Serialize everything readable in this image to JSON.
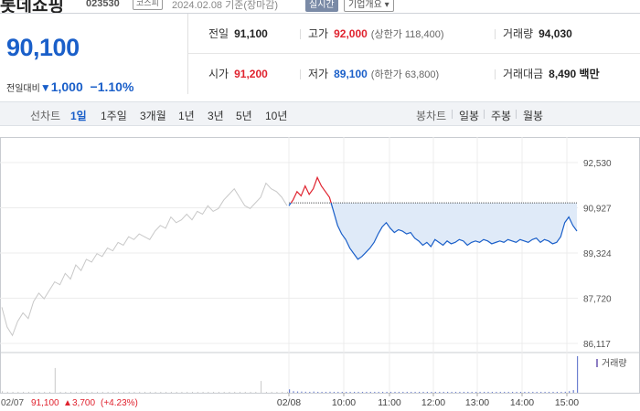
{
  "header": {
    "stock_name": "롯데쇼핑",
    "stock_code": "023530",
    "market_badge": "코스피",
    "date_text": "2024.02.08 기준(장마감)",
    "realtime_label": "실시간",
    "company_info_label": "기업개요 ▾"
  },
  "quote": {
    "price": "90,100",
    "change_label": "전일대비",
    "change_arrow": "▼",
    "change_value": "1,000",
    "change_percent": "−1.10%",
    "prev_close_label": "전일",
    "prev_close": "91,100",
    "high_label": "고가",
    "high": "92,000",
    "upper_limit": "(상한가 118,400)",
    "volume_label": "거래량",
    "volume": "94,030",
    "open_label": "시가",
    "open": "91,200",
    "low_label": "저가",
    "low": "89,100",
    "lower_limit": "(하한가 63,800)",
    "trade_value_label": "거래대금",
    "trade_value": "8,490 백만"
  },
  "tabs": {
    "line_chart_label": "선차트",
    "periods": [
      "1일",
      "1주일",
      "3개월",
      "1년",
      "3년",
      "5년",
      "10년"
    ],
    "active_period": "1일",
    "candle_chart_label": "봉차트",
    "candles": [
      "일봉",
      "주봉",
      "월봉"
    ]
  },
  "colors": {
    "up": "#e0232f",
    "down": "#1a5fc9",
    "prev_day_line": "#c8c8c8",
    "fill": "#dfeaf8"
  },
  "chart_data": {
    "type": "line",
    "y_ticks": [
      "92,530",
      "90,927",
      "89,324",
      "87,720",
      "86,117"
    ],
    "ylim": [
      86117,
      92530
    ],
    "x_ticks": [
      "02/07",
      "02/08",
      "10:00",
      "11:00",
      "12:00",
      "13:00",
      "14:00",
      "15:00"
    ],
    "reference_price": 91100,
    "prev_day_summary": {
      "date": "02/07",
      "close": "91,100",
      "arrow": "▲",
      "change": "3,700",
      "percent": "(+4.23%)"
    },
    "volume_label": "거래량",
    "series": [
      {
        "session": "02/07",
        "values": [
          87400,
          86700,
          86400,
          86900,
          87200,
          87000,
          87600,
          87900,
          87700,
          88000,
          88300,
          88200,
          88600,
          88400,
          88900,
          88700,
          89100,
          89000,
          89300,
          89200,
          89500,
          89400,
          89700,
          89600,
          89900,
          89800,
          90000,
          89900,
          89800,
          90100,
          90300,
          90200,
          90600,
          90400,
          90500,
          90700,
          90500,
          90800,
          90700,
          91000,
          90800,
          90900,
          91200,
          91400,
          91600,
          91300,
          91000,
          90900,
          91100,
          91300,
          91800,
          91600,
          91500,
          91300,
          91000
        ]
      },
      {
        "session": "02/08",
        "values": [
          91000,
          91200,
          91500,
          91350,
          91700,
          91400,
          91600,
          92000,
          91700,
          91500,
          91300,
          90800,
          90300,
          90000,
          89800,
          89500,
          89300,
          89100,
          89200,
          89350,
          89500,
          89700,
          90000,
          90250,
          90400,
          90200,
          90050,
          90150,
          90100,
          90000,
          90050,
          89850,
          89750,
          89600,
          89700,
          89550,
          89800,
          89700,
          89600,
          89750,
          89650,
          89700,
          89800,
          89750,
          89600,
          89700,
          89750,
          89700,
          89800,
          89750,
          89650,
          89700,
          89750,
          89700,
          89800,
          89750,
          89700,
          89800,
          89750,
          89700,
          89800,
          89850,
          89700,
          89800,
          89750,
          89650,
          89700,
          89900,
          90400,
          90600,
          90300,
          90100
        ]
      }
    ],
    "volume": {
      "02/07": [
        120,
        80,
        60,
        70,
        50,
        60,
        90,
        40,
        50,
        60,
        1900,
        50,
        70,
        60,
        40,
        60,
        50,
        40,
        60,
        70,
        50,
        40,
        60,
        50,
        40,
        60,
        50,
        40,
        60,
        50,
        60,
        40,
        50,
        60,
        40,
        50,
        60,
        40,
        50,
        60,
        40,
        50,
        60,
        40,
        50,
        60,
        40,
        50,
        60,
        900,
        50,
        60,
        40,
        70,
        80
      ],
      "02/08": [
        260,
        120,
        100,
        90,
        80,
        70,
        90,
        60,
        70,
        60,
        80,
        60,
        70,
        60,
        50,
        60,
        50,
        70,
        60,
        50,
        60,
        50,
        40,
        50,
        60,
        50,
        40,
        50,
        60,
        50,
        40,
        50,
        60,
        50,
        40,
        50,
        60,
        50,
        40,
        50,
        60,
        50,
        40,
        50,
        60,
        50,
        40,
        50,
        60,
        50,
        40,
        50,
        60,
        50,
        40,
        50,
        60,
        50,
        40,
        50,
        60,
        50,
        40,
        50,
        60,
        50,
        40,
        60,
        80,
        120,
        200,
        2800
      ]
    }
  }
}
